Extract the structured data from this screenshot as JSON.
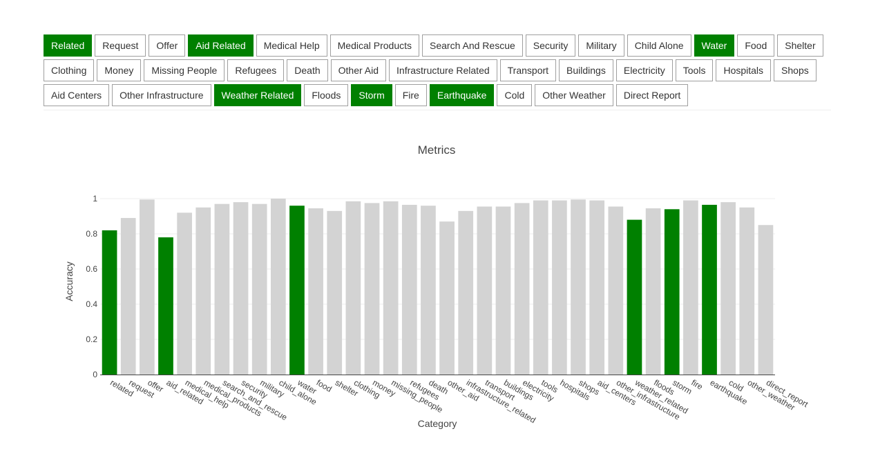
{
  "tags": [
    [
      {
        "label": "Related",
        "selected": true
      },
      {
        "label": "Request",
        "selected": false
      },
      {
        "label": "Offer",
        "selected": false
      },
      {
        "label": "Aid Related",
        "selected": true
      },
      {
        "label": "Medical Help",
        "selected": false
      },
      {
        "label": "Medical Products",
        "selected": false
      },
      {
        "label": "Search And Rescue",
        "selected": false
      },
      {
        "label": "Security",
        "selected": false
      },
      {
        "label": "Military",
        "selected": false
      },
      {
        "label": "Child Alone",
        "selected": false
      },
      {
        "label": "Water",
        "selected": true
      },
      {
        "label": "Food",
        "selected": false
      },
      {
        "label": "Shelter",
        "selected": false
      }
    ],
    [
      {
        "label": "Clothing",
        "selected": false
      },
      {
        "label": "Money",
        "selected": false
      },
      {
        "label": "Missing People",
        "selected": false
      },
      {
        "label": "Refugees",
        "selected": false
      },
      {
        "label": "Death",
        "selected": false
      },
      {
        "label": "Other Aid",
        "selected": false
      },
      {
        "label": "Infrastructure Related",
        "selected": false
      },
      {
        "label": "Transport",
        "selected": false
      },
      {
        "label": "Buildings",
        "selected": false
      },
      {
        "label": "Electricity",
        "selected": false
      },
      {
        "label": "Tools",
        "selected": false
      },
      {
        "label": "Hospitals",
        "selected": false
      },
      {
        "label": "Shops",
        "selected": false
      }
    ],
    [
      {
        "label": "Aid Centers",
        "selected": false
      },
      {
        "label": "Other Infrastructure",
        "selected": false
      },
      {
        "label": "Weather Related",
        "selected": true
      },
      {
        "label": "Floods",
        "selected": false
      },
      {
        "label": "Storm",
        "selected": true
      },
      {
        "label": "Fire",
        "selected": false
      },
      {
        "label": "Earthquake",
        "selected": true
      },
      {
        "label": "Cold",
        "selected": false
      },
      {
        "label": "Other Weather",
        "selected": false
      },
      {
        "label": "Direct Report",
        "selected": false
      }
    ]
  ],
  "colors": {
    "selected": "#008000",
    "unselected": "#d3d3d3",
    "grid": "#eeeeee"
  },
  "chart_data": {
    "type": "bar",
    "title": "Metrics",
    "xlabel": "Category",
    "ylabel": "Accuracy",
    "ylim": [
      0,
      1
    ],
    "yticks": [
      0,
      0.2,
      0.4,
      0.6,
      0.8,
      1
    ],
    "ytick_labels": [
      "0",
      "0.2",
      "0.4",
      "0.6",
      "0.8",
      "1"
    ],
    "grid": true,
    "categories": [
      "related",
      "request",
      "offer",
      "aid_related",
      "medical_help",
      "medical_products",
      "search_and_rescue",
      "security",
      "military",
      "child_alone",
      "water",
      "food",
      "shelter",
      "clothing",
      "money",
      "missing_people",
      "refugees",
      "death",
      "other_aid",
      "infrastructure_related",
      "transport",
      "buildings",
      "electricity",
      "tools",
      "hospitals",
      "shops",
      "aid_centers",
      "other_infrastructure",
      "weather_related",
      "floods",
      "storm",
      "fire",
      "earthquake",
      "cold",
      "other_weather",
      "direct_report"
    ],
    "values": [
      0.82,
      0.89,
      0.995,
      0.78,
      0.92,
      0.95,
      0.97,
      0.98,
      0.97,
      1.0,
      0.96,
      0.945,
      0.93,
      0.985,
      0.975,
      0.985,
      0.965,
      0.96,
      0.87,
      0.93,
      0.955,
      0.955,
      0.975,
      0.99,
      0.99,
      0.995,
      0.99,
      0.955,
      0.88,
      0.945,
      0.94,
      0.99,
      0.965,
      0.98,
      0.95,
      0.85
    ],
    "highlighted": [
      true,
      false,
      false,
      true,
      false,
      false,
      false,
      false,
      false,
      false,
      true,
      false,
      false,
      false,
      false,
      false,
      false,
      false,
      false,
      false,
      false,
      false,
      false,
      false,
      false,
      false,
      false,
      false,
      true,
      false,
      true,
      false,
      true,
      false,
      false,
      false
    ]
  }
}
